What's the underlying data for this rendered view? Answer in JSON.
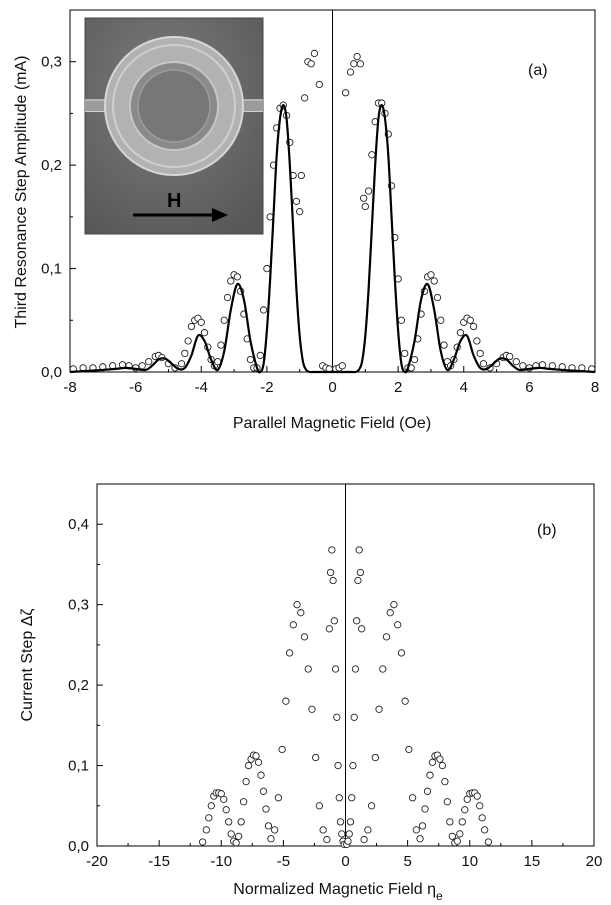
{
  "chart_data": [
    {
      "type": "scatter",
      "panel_label": "(a)",
      "xlabel": "Parallel Magnetic Field (Oe)",
      "ylabel": "Third Resonance  Step Amplitude (mA)",
      "xlim": [
        -8,
        8
      ],
      "ylim": [
        0,
        0.35
      ],
      "x_ticks": [
        -8,
        -6,
        -4,
        -2,
        0,
        2,
        4,
        6,
        8
      ],
      "x_tick_labels": [
        "-8",
        "-6",
        "-4",
        "-2",
        "0",
        "2",
        "4",
        "6",
        "8"
      ],
      "y_ticks": [
        0.0,
        0.1,
        0.2,
        0.3
      ],
      "y_tick_labels": [
        "0,0",
        "0,1",
        "0,2",
        "0,3"
      ],
      "grid": false,
      "inset": {
        "description": "micrograph",
        "arrow_label": "H"
      },
      "series": [
        {
          "kind": "markers",
          "x": [
            -7.9,
            -7.6,
            -7.3,
            -7.0,
            -6.7,
            -6.4,
            -6.2,
            -6.0,
            -5.8,
            -5.6,
            -5.4,
            -5.3,
            -5.2,
            -5.0,
            -4.8,
            -4.6,
            -4.5,
            -4.4,
            -4.3,
            -4.2,
            -4.1,
            -4.0,
            -3.9,
            -3.8,
            -3.7,
            -3.6,
            -3.5,
            -3.4,
            -3.3,
            -3.2,
            -3.1,
            -3.0,
            -2.9,
            -2.8,
            -2.7,
            -2.6,
            -2.5,
            -2.4,
            -2.3,
            -2.2,
            -2.1,
            -2.0,
            -1.9,
            -1.8,
            -1.7,
            -1.6,
            -1.5,
            -1.4,
            -1.3,
            -1.2,
            -1.1,
            -1.0,
            -0.95,
            -0.85,
            -0.75,
            -0.65,
            -0.55,
            -0.4,
            -0.3,
            -0.2,
            -0.1,
            0.1,
            0.2,
            0.3,
            0.4,
            0.55,
            0.65,
            0.75,
            0.85,
            0.95,
            1.0,
            1.1,
            1.2,
            1.3,
            1.4,
            1.5,
            1.6,
            1.7,
            1.8,
            1.9,
            2.0,
            2.1,
            2.2,
            2.3,
            2.4,
            2.5,
            2.6,
            2.7,
            2.8,
            2.9,
            3.0,
            3.1,
            3.2,
            3.3,
            3.4,
            3.5,
            3.6,
            3.7,
            3.8,
            3.9,
            4.0,
            4.1,
            4.2,
            4.3,
            4.4,
            4.5,
            4.6,
            4.8,
            5.0,
            5.2,
            5.3,
            5.4,
            5.6,
            5.8,
            6.0,
            6.2,
            6.4,
            6.7,
            7.0,
            7.3,
            7.6,
            7.9
          ],
          "y": [
            0.003,
            0.004,
            0.004,
            0.005,
            0.006,
            0.007,
            0.006,
            0.004,
            0.006,
            0.01,
            0.015,
            0.016,
            0.014,
            0.008,
            0.004,
            0.008,
            0.018,
            0.03,
            0.044,
            0.05,
            0.052,
            0.048,
            0.038,
            0.024,
            0.012,
            0.006,
            0.01,
            0.026,
            0.05,
            0.072,
            0.088,
            0.094,
            0.092,
            0.078,
            0.056,
            0.032,
            0.012,
            0.004,
            0.004,
            0.016,
            0.06,
            0.1,
            0.15,
            0.2,
            0.236,
            0.255,
            0.258,
            0.248,
            0.222,
            0.19,
            0.165,
            0.155,
            0.19,
            0.265,
            0.3,
            0.298,
            0.308,
            0.278,
            0.006,
            0.004,
            0.003,
            0.003,
            0.004,
            0.006,
            0.27,
            0.29,
            0.298,
            0.305,
            0.298,
            0.168,
            0.16,
            0.175,
            0.21,
            0.242,
            0.26,
            0.26,
            0.25,
            0.23,
            0.18,
            0.13,
            0.09,
            0.05,
            0.018,
            0.004,
            0.004,
            0.012,
            0.032,
            0.056,
            0.078,
            0.092,
            0.094,
            0.088,
            0.072,
            0.05,
            0.026,
            0.01,
            0.006,
            0.012,
            0.024,
            0.038,
            0.048,
            0.052,
            0.05,
            0.044,
            0.03,
            0.018,
            0.008,
            0.004,
            0.008,
            0.014,
            0.016,
            0.015,
            0.01,
            0.006,
            0.004,
            0.006,
            0.007,
            0.006,
            0.005,
            0.004,
            0.004,
            0.003
          ]
        },
        {
          "kind": "fit-line",
          "x": [
            -8,
            -7.5,
            -7,
            -6.6,
            -6.3,
            -6.0,
            -5.7,
            -5.5,
            -5.3,
            -5.1,
            -4.9,
            -4.7,
            -4.5,
            -4.3,
            -4.1,
            -3.9,
            -3.7,
            -3.5,
            -3.3,
            -3.1,
            -2.9,
            -2.7,
            -2.5,
            -2.3,
            -2.2,
            -2.1,
            -2.0,
            -1.9,
            -1.8,
            -1.7,
            -1.6,
            -1.5,
            -1.4,
            -1.3,
            -1.2,
            -1.1,
            -1.0,
            -0.9,
            -0.8,
            -0.7,
            -0.6,
            -0.5,
            -0.4,
            -0.2,
            0,
            0.2,
            0.4,
            0.5,
            0.6,
            0.7,
            0.8,
            0.9,
            1.0,
            1.1,
            1.2,
            1.3,
            1.4,
            1.5,
            1.6,
            1.7,
            1.8,
            1.9,
            2.0,
            2.1,
            2.2,
            2.3,
            2.5,
            2.7,
            2.9,
            3.1,
            3.3,
            3.5,
            3.7,
            3.9,
            4.1,
            4.3,
            4.5,
            4.7,
            4.9,
            5.1,
            5.3,
            5.5,
            5.7,
            6.0,
            6.3,
            6.6,
            7,
            7.5,
            8
          ],
          "y": [
            0.0,
            0.001,
            0.002,
            0.003,
            0.004,
            0.003,
            0.002,
            0.006,
            0.012,
            0.013,
            0.008,
            0.003,
            0.004,
            0.016,
            0.035,
            0.03,
            0.012,
            0.002,
            0.02,
            0.06,
            0.085,
            0.07,
            0.03,
            0.004,
            0.0,
            0.008,
            0.04,
            0.09,
            0.15,
            0.21,
            0.245,
            0.258,
            0.245,
            0.2,
            0.14,
            0.08,
            0.035,
            0.01,
            0.002,
            0.0,
            0.0,
            0.0,
            0.0,
            0.0,
            0.0,
            0.0,
            0.0,
            0.0,
            0.0,
            0.0,
            0.002,
            0.01,
            0.035,
            0.08,
            0.14,
            0.2,
            0.245,
            0.258,
            0.245,
            0.21,
            0.15,
            0.09,
            0.04,
            0.008,
            0.0,
            0.004,
            0.03,
            0.07,
            0.085,
            0.06,
            0.02,
            0.002,
            0.012,
            0.03,
            0.035,
            0.016,
            0.004,
            0.003,
            0.008,
            0.013,
            0.012,
            0.006,
            0.002,
            0.003,
            0.004,
            0.003,
            0.002,
            0.001,
            0.0
          ]
        }
      ]
    },
    {
      "type": "scatter",
      "panel_label": "(b)",
      "xlabel": "Normalized Magnetic Field   η",
      "xlabel_subscript": "e",
      "ylabel": "Current Step   Δζ",
      "xlim": [
        -20,
        20
      ],
      "ylim": [
        0,
        0.45
      ],
      "x_ticks": [
        -20,
        -15,
        -10,
        -5,
        0,
        5,
        10,
        15,
        20
      ],
      "x_tick_labels": [
        "-20",
        "-15",
        "-10",
        "-5",
        "0",
        "5",
        "10",
        "15",
        "20"
      ],
      "y_ticks": [
        0.0,
        0.1,
        0.2,
        0.3,
        0.4
      ],
      "y_tick_labels": [
        "0,0",
        "0,1",
        "0,2",
        "0,3",
        "0,4"
      ],
      "grid": false,
      "series": [
        {
          "kind": "markers",
          "x": [
            -11.5,
            -11.2,
            -11.0,
            -10.8,
            -10.6,
            -10.4,
            -10.2,
            -10.0,
            -9.8,
            -9.6,
            -9.4,
            -9.2,
            -9.0,
            -8.8,
            -8.6,
            -8.4,
            -8.2,
            -8.0,
            -7.8,
            -7.6,
            -7.4,
            -7.2,
            -7.0,
            -6.8,
            -6.6,
            -6.4,
            -6.2,
            -6.0,
            -5.7,
            -5.4,
            -5.1,
            -4.8,
            -4.5,
            -4.2,
            -3.9,
            -3.6,
            -3.3,
            -3.0,
            -2.7,
            -2.4,
            -2.1,
            -1.8,
            -1.5,
            -1.3,
            -1.2,
            -1.1,
            -1.0,
            -0.9,
            -0.8,
            -0.7,
            -0.6,
            -0.5,
            -0.4,
            -0.3,
            -0.2,
            -0.1,
            0.1,
            0.2,
            0.3,
            0.4,
            0.5,
            0.6,
            0.7,
            0.8,
            0.9,
            1.0,
            1.1,
            1.2,
            1.3,
            1.5,
            1.8,
            2.1,
            2.4,
            2.7,
            3.0,
            3.3,
            3.6,
            3.9,
            4.2,
            4.5,
            4.8,
            5.1,
            5.4,
            5.7,
            6.0,
            6.2,
            6.4,
            6.6,
            6.8,
            7.0,
            7.2,
            7.4,
            7.6,
            7.8,
            8.0,
            8.2,
            8.4,
            8.6,
            8.8,
            9.0,
            9.2,
            9.4,
            9.6,
            9.8,
            10.0,
            10.2,
            10.4,
            10.6,
            10.8,
            11.0,
            11.2,
            11.5
          ],
          "y": [
            0.005,
            0.02,
            0.035,
            0.05,
            0.062,
            0.066,
            0.066,
            0.065,
            0.058,
            0.045,
            0.03,
            0.015,
            0.006,
            0.004,
            0.012,
            0.03,
            0.055,
            0.08,
            0.1,
            0.108,
            0.113,
            0.112,
            0.104,
            0.088,
            0.068,
            0.046,
            0.025,
            0.009,
            0.02,
            0.06,
            0.12,
            0.18,
            0.24,
            0.275,
            0.3,
            0.29,
            0.26,
            0.22,
            0.17,
            0.11,
            0.05,
            0.02,
            0.008,
            0.27,
            0.34,
            0.368,
            0.33,
            0.28,
            0.22,
            0.16,
            0.1,
            0.06,
            0.03,
            0.015,
            0.006,
            0.002,
            0.002,
            0.006,
            0.015,
            0.03,
            0.06,
            0.1,
            0.16,
            0.22,
            0.28,
            0.33,
            0.368,
            0.34,
            0.27,
            0.008,
            0.02,
            0.05,
            0.11,
            0.17,
            0.22,
            0.26,
            0.29,
            0.3,
            0.275,
            0.24,
            0.18,
            0.12,
            0.06,
            0.02,
            0.009,
            0.025,
            0.046,
            0.068,
            0.088,
            0.104,
            0.112,
            0.113,
            0.108,
            0.1,
            0.08,
            0.055,
            0.03,
            0.012,
            0.004,
            0.006,
            0.015,
            0.03,
            0.045,
            0.058,
            0.065,
            0.066,
            0.066,
            0.062,
            0.05,
            0.035,
            0.02,
            0.005
          ]
        }
      ]
    }
  ]
}
